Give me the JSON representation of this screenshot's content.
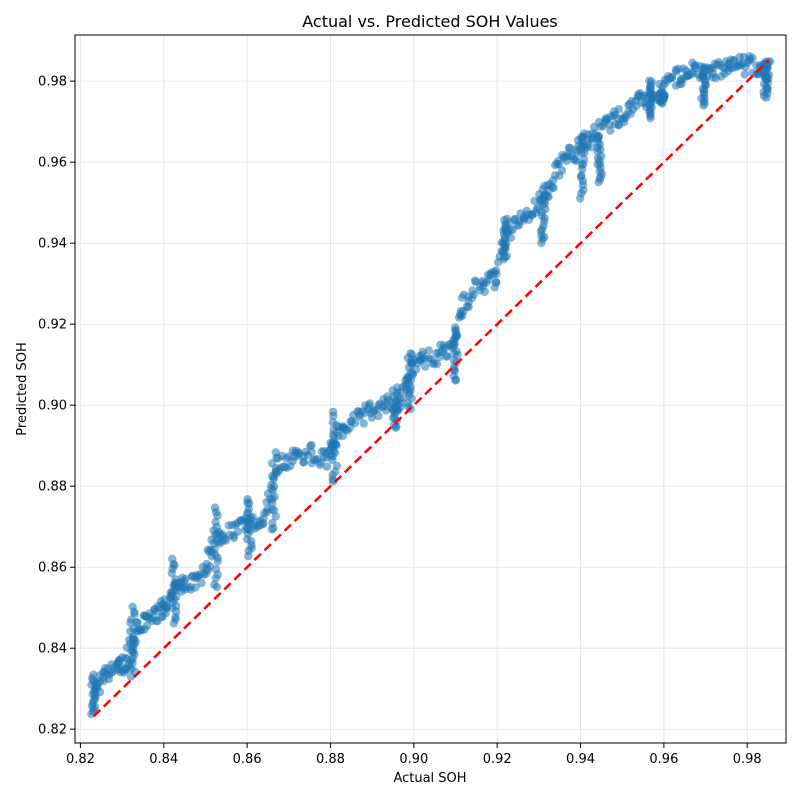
{
  "chart_data": {
    "type": "scatter",
    "title": "Actual vs. Predicted SOH Values",
    "xlabel": "Actual SOH",
    "ylabel": "Predicted SOH",
    "xlim": [
      0.8187,
      0.9893
    ],
    "ylim": [
      0.8166,
      0.9914
    ],
    "xticks": [
      0.82,
      0.84,
      0.86,
      0.88,
      0.9,
      0.92,
      0.94,
      0.96,
      0.98
    ],
    "yticks": [
      0.82,
      0.84,
      0.86,
      0.88,
      0.9,
      0.92,
      0.94,
      0.96,
      0.98
    ],
    "grid": true,
    "colors": {
      "points": "#1f77b4",
      "reference": "#ff0000",
      "grid": "#e6e6e6"
    },
    "series": [
      {
        "kind": "scatter",
        "trend": [
          [
            0.8232,
            0.8295
          ],
          [
            0.826,
            0.833
          ],
          [
            0.829,
            0.8355
          ],
          [
            0.831,
            0.836
          ],
          [
            0.833,
            0.844
          ],
          [
            0.836,
            0.847
          ],
          [
            0.839,
            0.849
          ],
          [
            0.841,
            0.851
          ],
          [
            0.843,
            0.8545
          ],
          [
            0.846,
            0.8565
          ],
          [
            0.8495,
            0.8575
          ],
          [
            0.852,
            0.867
          ],
          [
            0.856,
            0.869
          ],
          [
            0.86,
            0.8705
          ],
          [
            0.864,
            0.8715
          ],
          [
            0.867,
            0.885
          ],
          [
            0.871,
            0.8875
          ],
          [
            0.875,
            0.888
          ],
          [
            0.879,
            0.887
          ],
          [
            0.8815,
            0.8925
          ],
          [
            0.885,
            0.8955
          ],
          [
            0.889,
            0.8985
          ],
          [
            0.893,
            0.9
          ],
          [
            0.8965,
            0.9005
          ],
          [
            0.899,
            0.909
          ],
          [
            0.902,
            0.9115
          ],
          [
            0.906,
            0.9125
          ],
          [
            0.9095,
            0.915
          ],
          [
            0.912,
            0.9255
          ],
          [
            0.916,
            0.93
          ],
          [
            0.9195,
            0.931
          ],
          [
            0.922,
            0.942
          ],
          [
            0.926,
            0.946
          ],
          [
            0.9295,
            0.949
          ],
          [
            0.933,
            0.955
          ],
          [
            0.936,
            0.961
          ],
          [
            0.9395,
            0.963
          ],
          [
            0.9425,
            0.966
          ],
          [
            0.946,
            0.969
          ],
          [
            0.9495,
            0.971
          ],
          [
            0.953,
            0.975
          ],
          [
            0.9565,
            0.976
          ],
          [
            0.96,
            0.9785
          ],
          [
            0.9635,
            0.981
          ],
          [
            0.9665,
            0.9825
          ],
          [
            0.97,
            0.982
          ],
          [
            0.9735,
            0.983
          ],
          [
            0.977,
            0.9835
          ],
          [
            0.9805,
            0.984
          ],
          [
            0.984,
            0.983
          ],
          [
            0.9852,
            0.9828
          ]
        ],
        "clusters": [
          [
            0.8232,
            0.8235,
            0.8335
          ],
          [
            0.8325,
            0.8325,
            0.8505
          ],
          [
            0.8425,
            0.8455,
            0.8625
          ],
          [
            0.8525,
            0.8545,
            0.8755
          ],
          [
            0.8605,
            0.8625,
            0.8775
          ],
          [
            0.8665,
            0.8685,
            0.8885
          ],
          [
            0.881,
            0.8805,
            0.8985
          ],
          [
            0.8955,
            0.894,
            0.9045
          ],
          [
            0.899,
            0.8985,
            0.9135
          ],
          [
            0.91,
            0.9055,
            0.9195
          ],
          [
            0.922,
            0.9355,
            0.9465
          ],
          [
            0.931,
            0.9395,
            0.9535
          ],
          [
            0.9405,
            0.951,
            0.968
          ],
          [
            0.9445,
            0.955,
            0.9665
          ],
          [
            0.9565,
            0.9705,
            0.9805
          ],
          [
            0.9595,
            0.9745,
            0.9775
          ],
          [
            0.9695,
            0.9735,
            0.9835
          ],
          [
            0.9845,
            0.9755,
            0.9845
          ]
        ]
      },
      {
        "kind": "line",
        "style": "dashed",
        "x": [
          0.8232,
          0.9852
        ],
        "y": [
          0.8232,
          0.9852
        ]
      }
    ]
  }
}
